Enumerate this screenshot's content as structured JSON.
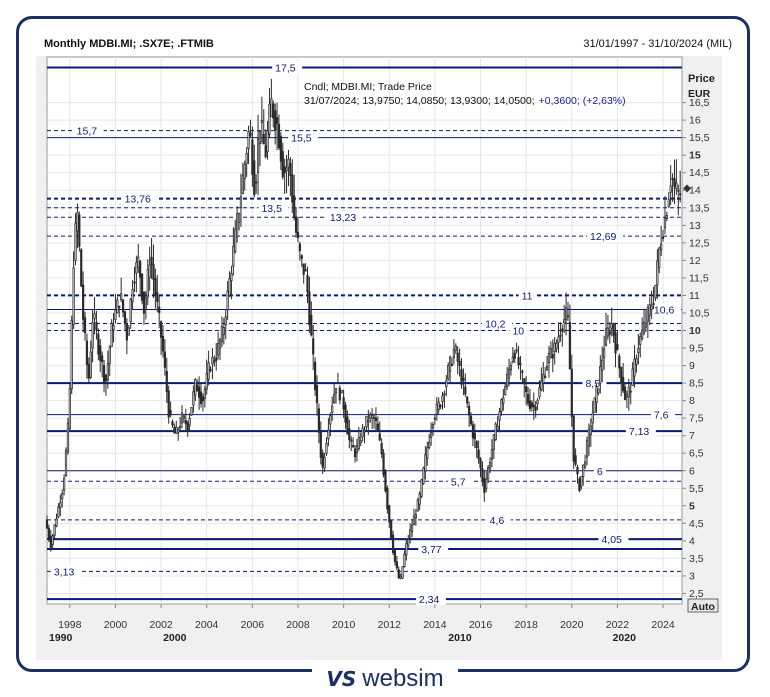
{
  "header": {
    "title": "Monthly MDBI.MI; .SX7E; .FTMIB",
    "date_range": "31/01/1997 - 31/10/2024 (MIL)"
  },
  "info": {
    "line1": "Cndl; MDBI.MI; Trade Price",
    "line2_prefix": "31/07/2024; 13,9750; 14,0850; 13,9300; 14,0500;",
    "line2_change": "+0,3600; (+2,63%)"
  },
  "axis": {
    "price_label": "Price",
    "currency_label": "EUR",
    "auto_label": "Auto"
  },
  "logo": {
    "mark": "VS",
    "text": "websim"
  },
  "colors": {
    "line": "#0a1a7a",
    "candle": "#2a2a2a",
    "accent": "#1b2f63",
    "plot_bg": "#ffffff",
    "grid": "#e6e6e6"
  },
  "chart_data": {
    "type": "candlestick",
    "symbol": "MDBI.MI",
    "frequency": "Monthly",
    "ylim": [
      2.2,
      17.8
    ],
    "y_ticks": [
      2.5,
      3,
      3.5,
      4,
      4.5,
      5,
      5.5,
      6,
      6.5,
      7,
      7.5,
      8,
      8.5,
      9,
      9.5,
      10,
      10.5,
      11,
      11.5,
      12,
      12.5,
      13,
      13.5,
      14,
      14.5,
      15,
      15.5,
      16,
      16.5
    ],
    "y_tick_labels": [
      "2,5",
      "3",
      "3,5",
      "4",
      "4,5",
      "5",
      "5,5",
      "6",
      "6,5",
      "7",
      "7,5",
      "8",
      "8,5",
      "9",
      "9,5",
      "10",
      "10,5",
      "11",
      "11,5",
      "12",
      "12,5",
      "13",
      "13,5",
      "14",
      "14,5",
      "15",
      "15,5",
      "16",
      "16,5"
    ],
    "y_bold_ticks": [
      5,
      10,
      15
    ],
    "x_range": [
      1997.0,
      2024.83
    ],
    "x_ticks": [
      1998,
      2000,
      2002,
      2004,
      2006,
      2008,
      2010,
      2012,
      2014,
      2016,
      2018,
      2020,
      2022,
      2024
    ],
    "x_tick_labels": [
      "1998",
      "2000",
      "2002",
      "2004",
      "2006",
      "2008",
      "2010",
      "2012",
      "2014",
      "2016",
      "2018",
      "2020",
      "2022",
      "2024"
    ],
    "x_major": [
      {
        "x": 1997.6,
        "label": "1990"
      },
      {
        "x": 2002.6,
        "label": "2000"
      },
      {
        "x": 2015.1,
        "label": "2010"
      },
      {
        "x": 2022.3,
        "label": "2020"
      }
    ],
    "last_price": 14.05,
    "levels": [
      {
        "value": 17.5,
        "label": "17,5",
        "style": "solid",
        "weight": 2,
        "label_x": 2007.0
      },
      {
        "value": 15.7,
        "label": "15,7",
        "style": "dashed",
        "weight": 1,
        "label_x": 1998.3
      },
      {
        "value": 15.5,
        "label": "15,5",
        "style": "solid",
        "weight": 1,
        "label_x": 2007.7
      },
      {
        "value": 13.76,
        "label": "13,76",
        "style": "dashed",
        "weight": 2,
        "label_x": 2000.4
      },
      {
        "value": 13.5,
        "label": "13,5",
        "style": "dashed",
        "weight": 1,
        "label_x": 2006.4
      },
      {
        "value": 13.23,
        "label": "13,23",
        "style": "dashed",
        "weight": 1,
        "label_x": 2009.4
      },
      {
        "value": 12.69,
        "label": "12,69",
        "style": "dashed",
        "weight": 1,
        "label_x": 2020.8
      },
      {
        "value": 11.0,
        "label": "11",
        "style": "dashed",
        "weight": 2,
        "label_x": 2017.8
      },
      {
        "value": 10.6,
        "label": "10,6",
        "style": "solid",
        "weight": 1,
        "label_x": 2023.6
      },
      {
        "value": 10.2,
        "label": "10,2",
        "style": "dashed",
        "weight": 1,
        "label_x": 2016.2
      },
      {
        "value": 10.0,
        "label": "10",
        "style": "dashed",
        "weight": 1,
        "label_x": 2017.4
      },
      {
        "value": 8.5,
        "label": "8,5",
        "style": "solid",
        "weight": 2,
        "label_x": 2020.6
      },
      {
        "value": 7.6,
        "label": "7,6",
        "style": "solid",
        "weight": 1,
        "label_x": 2023.6
      },
      {
        "value": 7.13,
        "label": "7,13",
        "style": "solid",
        "weight": 2,
        "label_x": 2022.5
      },
      {
        "value": 6.0,
        "label": "6",
        "style": "solid",
        "weight": 1,
        "label_x": 2021.1
      },
      {
        "value": 5.7,
        "label": "5,7",
        "style": "dashed",
        "weight": 1,
        "label_x": 2014.7
      },
      {
        "value": 4.6,
        "label": "4,6",
        "style": "dashed",
        "weight": 1,
        "label_x": 2016.4
      },
      {
        "value": 4.05,
        "label": "4,05",
        "style": "solid",
        "weight": 2,
        "label_x": 2021.3
      },
      {
        "value": 3.77,
        "label": "3,77",
        "style": "solid",
        "weight": 2,
        "label_x": 2013.4
      },
      {
        "value": 3.13,
        "label": "3,13",
        "style": "dashed",
        "weight": 1,
        "label_x": 1997.3
      },
      {
        "value": 2.34,
        "label": "2,34",
        "style": "solid",
        "weight": 2,
        "label_x": 2013.3
      }
    ],
    "anchors": [
      [
        1997.0,
        4.6
      ],
      [
        1997.25,
        3.9
      ],
      [
        1997.6,
        5.0
      ],
      [
        1997.8,
        5.6
      ],
      [
        1998.05,
        7.6
      ],
      [
        1998.25,
        12.0
      ],
      [
        1998.4,
        13.5
      ],
      [
        1998.65,
        10.5
      ],
      [
        1998.9,
        8.5
      ],
      [
        1999.1,
        10.5
      ],
      [
        1999.35,
        9.5
      ],
      [
        1999.65,
        8.5
      ],
      [
        1999.95,
        10.2
      ],
      [
        2000.3,
        11.0
      ],
      [
        2000.6,
        9.8
      ],
      [
        2000.85,
        11.5
      ],
      [
        2001.1,
        12.0
      ],
      [
        2001.35,
        10.5
      ],
      [
        2001.6,
        12.2
      ],
      [
        2001.85,
        11.0
      ],
      [
        2002.15,
        9.5
      ],
      [
        2002.45,
        7.5
      ],
      [
        2002.7,
        7.0
      ],
      [
        2003.0,
        7.5
      ],
      [
        2003.25,
        7.3
      ],
      [
        2003.6,
        8.5
      ],
      [
        2003.9,
        8.0
      ],
      [
        2004.2,
        9.0
      ],
      [
        2004.5,
        9.3
      ],
      [
        2004.8,
        10.0
      ],
      [
        2005.1,
        11.5
      ],
      [
        2005.4,
        13.0
      ],
      [
        2005.7,
        14.5
      ],
      [
        2005.95,
        15.8
      ],
      [
        2006.2,
        14.0
      ],
      [
        2006.4,
        16.0
      ],
      [
        2006.65,
        15.0
      ],
      [
        2006.9,
        16.5
      ],
      [
        2007.2,
        15.8
      ],
      [
        2007.45,
        14.5
      ],
      [
        2007.7,
        14.8
      ],
      [
        2007.95,
        13.0
      ],
      [
        2008.2,
        12.0
      ],
      [
        2008.45,
        11.5
      ],
      [
        2008.7,
        9.5
      ],
      [
        2008.95,
        7.5
      ],
      [
        2009.15,
        6.0
      ],
      [
        2009.45,
        7.5
      ],
      [
        2009.75,
        8.5
      ],
      [
        2010.05,
        8.0
      ],
      [
        2010.35,
        6.8
      ],
      [
        2010.6,
        6.5
      ],
      [
        2010.85,
        7.0
      ],
      [
        2011.15,
        7.5
      ],
      [
        2011.45,
        7.5
      ],
      [
        2011.75,
        6.5
      ],
      [
        2012.0,
        5.0
      ],
      [
        2012.3,
        3.5
      ],
      [
        2012.55,
        2.8
      ],
      [
        2012.8,
        3.8
      ],
      [
        2013.1,
        4.5
      ],
      [
        2013.4,
        5.2
      ],
      [
        2013.7,
        6.5
      ],
      [
        2014.0,
        7.5
      ],
      [
        2014.35,
        8.0
      ],
      [
        2014.65,
        8.8
      ],
      [
        2014.95,
        9.5
      ],
      [
        2015.3,
        8.5
      ],
      [
        2015.6,
        7.5
      ],
      [
        2015.95,
        6.5
      ],
      [
        2016.25,
        5.5
      ],
      [
        2016.55,
        6.5
      ],
      [
        2016.85,
        7.5
      ],
      [
        2017.2,
        8.5
      ],
      [
        2017.55,
        9.5
      ],
      [
        2017.85,
        8.8
      ],
      [
        2018.15,
        8.0
      ],
      [
        2018.45,
        7.8
      ],
      [
        2018.75,
        8.5
      ],
      [
        2019.05,
        9.2
      ],
      [
        2019.35,
        9.5
      ],
      [
        2019.65,
        10.2
      ],
      [
        2019.9,
        10.5
      ],
      [
        2020.15,
        6.5
      ],
      [
        2020.4,
        5.5
      ],
      [
        2020.7,
        6.5
      ],
      [
        2020.95,
        7.5
      ],
      [
        2021.25,
        8.5
      ],
      [
        2021.55,
        9.8
      ],
      [
        2021.85,
        10.2
      ],
      [
        2022.15,
        9.0
      ],
      [
        2022.45,
        8.0
      ],
      [
        2022.7,
        8.5
      ],
      [
        2022.95,
        9.5
      ],
      [
        2023.2,
        10.0
      ],
      [
        2023.45,
        10.5
      ],
      [
        2023.7,
        11.0
      ],
      [
        2023.95,
        12.5
      ],
      [
        2024.2,
        13.3
      ],
      [
        2024.45,
        14.5
      ],
      [
        2024.58,
        14.05
      ],
      [
        2024.75,
        13.9
      ]
    ]
  }
}
